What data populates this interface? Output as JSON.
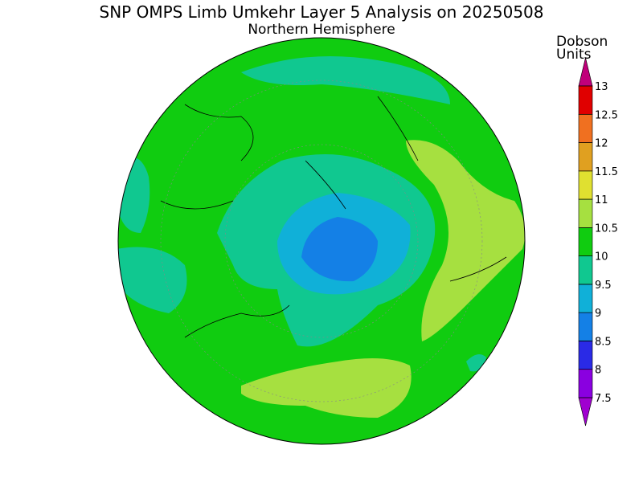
{
  "title": "SNP OMPS Limb Umkehr Layer 5 Analysis on 20250508",
  "subtitle": "Northern Hemisphere",
  "colorbar": {
    "label": [
      "Dobson",
      "Units"
    ],
    "ticks": [
      7.5,
      8,
      8.5,
      9,
      9.5,
      10,
      10.5,
      11,
      11.5,
      12,
      12.5,
      13
    ],
    "colors": [
      "#8a00e0",
      "#2a2ae6",
      "#1480e6",
      "#10b0d8",
      "#10c890",
      "#10cc10",
      "#a6e040",
      "#e0e030",
      "#e0a020",
      "#f07020",
      "#e00000"
    ],
    "under_color": "#a000d0",
    "over_color": "#c0007a"
  }
}
